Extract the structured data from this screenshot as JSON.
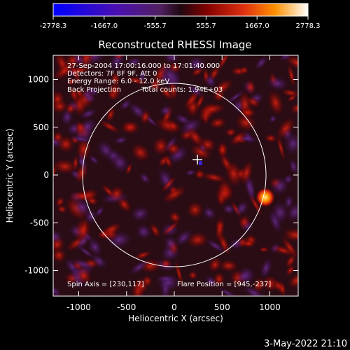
{
  "colorbar": {
    "ticks": [
      "-2778.3",
      "-1667.0",
      "-555.7",
      "555.7",
      "1667.0",
      "2778.3"
    ],
    "colors": [
      "#0000ff",
      "#3a00c8",
      "#6a2a8a",
      "#3a1030",
      "#800000",
      "#e03010",
      "#ff8000",
      "#ffd040",
      "#ffffff"
    ]
  },
  "title": "Reconstructed RHESSI Image",
  "info": {
    "line1": "27-Sep-2004 17:00:16.000 to 17:01:40.000",
    "line2": "Detectors: 7F 8F 9F, Att 0",
    "line3": "Energy Range: 6.0 - 12.0 keV",
    "line4_a": "Back Projection",
    "line4_b": "Total counts: 1.94E+03"
  },
  "spin_axis": "Spin Axis = [230,117]",
  "flare_position": "Flare Position = [945,-237]",
  "axes": {
    "xlabel": "Heliocentric X (arcsec)",
    "ylabel": "Heliocentric Y (arcsec)",
    "xticks": [
      "-1000",
      "-500",
      "0",
      "500",
      "1000"
    ],
    "yticks": [
      "1000",
      "500",
      "0",
      "-500",
      "-1000"
    ]
  },
  "footer_date": "3-May-2022 21:10"
}
